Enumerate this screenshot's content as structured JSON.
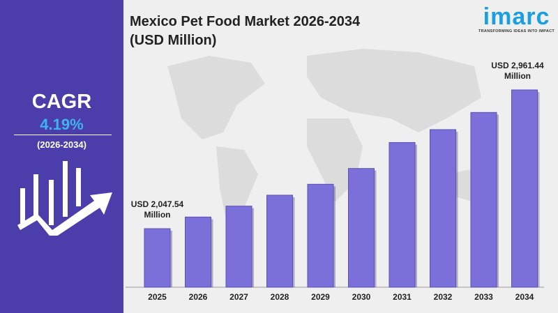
{
  "title_line1": "Mexico Pet Food Market 2026-2034",
  "title_line2": "(USD Million)",
  "logo": {
    "word": "imarc",
    "tagline": "TRANSFORMING IDEAS INTO IMPACT"
  },
  "cagr": {
    "label": "CAGR",
    "value": "4.19%",
    "period": "(2026-2034)"
  },
  "colors": {
    "panel": "#4b3eaa",
    "bar": "#7b6fd9",
    "cagr_value": "#3fb3f0",
    "background": "#efefef"
  },
  "chart_data": {
    "type": "bar",
    "categories": [
      "2025",
      "2026",
      "2027",
      "2028",
      "2029",
      "2030",
      "2031",
      "2032",
      "2033",
      "2034"
    ],
    "values": [
      2047.54,
      2124,
      2196,
      2268,
      2340,
      2444,
      2615,
      2700,
      2813,
      2961.44
    ],
    "data_labels": [
      {
        "category": "2025",
        "line1": "USD 2,047.54",
        "line2": "Million"
      },
      {
        "category": "2034",
        "line1": "USD 2,961.44",
        "line2": "Million"
      }
    ],
    "xlabel": "",
    "ylabel": "",
    "grid": false,
    "legend": "none"
  }
}
